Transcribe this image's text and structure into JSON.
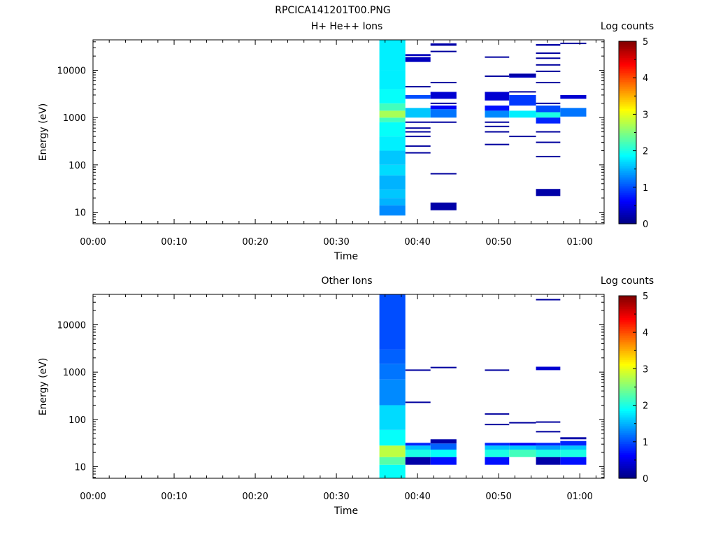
{
  "figure_title": "RPCICA141201T00.PNG",
  "chart_data": [
    {
      "type": "heatmap",
      "title": "H+ He++ Ions",
      "xlabel": "Time",
      "ylabel": "Energy (eV)",
      "colorbar_label": "Log counts",
      "x_ticks": [
        "00:00",
        "00:10",
        "00:20",
        "00:30",
        "00:40",
        "00:50",
        "01:00"
      ],
      "y_ticks": [
        "10",
        "100",
        "1000",
        "10000"
      ],
      "xlim_minutes": [
        0,
        63
      ],
      "ylim_ev": [
        5.7,
        44000
      ],
      "y_scale": "log",
      "colorbar_ticks": [
        "0",
        "1",
        "2",
        "3",
        "4",
        "5"
      ],
      "clim": [
        0,
        5
      ],
      "colormap": "jet",
      "cells": [
        [
          35.3,
          38.5,
          8.5,
          14,
          1.3
        ],
        [
          35.3,
          38.5,
          14,
          20,
          1.5
        ],
        [
          35.3,
          38.5,
          20,
          30,
          1.6
        ],
        [
          35.3,
          38.5,
          30,
          60,
          1.5
        ],
        [
          35.3,
          38.5,
          60,
          100,
          1.7
        ],
        [
          35.3,
          38.5,
          100,
          200,
          1.6
        ],
        [
          35.3,
          38.5,
          200,
          400,
          1.8
        ],
        [
          35.3,
          38.5,
          400,
          800,
          1.9
        ],
        [
          35.3,
          38.5,
          800,
          1000,
          2.2
        ],
        [
          35.3,
          38.5,
          1000,
          1400,
          2.7
        ],
        [
          35.3,
          38.5,
          1400,
          2000,
          2.2
        ],
        [
          35.3,
          38.5,
          2000,
          4000,
          1.9
        ],
        [
          35.3,
          38.5,
          4000,
          10000,
          1.8
        ],
        [
          35.3,
          38.5,
          10000,
          44000,
          1.8
        ],
        [
          38.5,
          41.6,
          1000,
          1600,
          1.6
        ],
        [
          38.5,
          41.6,
          2500,
          3000,
          1.0
        ],
        [
          38.5,
          41.6,
          15000,
          19000,
          0.3
        ],
        [
          38.5,
          41.6,
          20000,
          22000,
          0.3
        ],
        [
          41.6,
          44.8,
          1000,
          1500,
          1.2
        ],
        [
          41.6,
          44.8,
          1500,
          1800,
          0.6
        ],
        [
          41.6,
          44.8,
          2500,
          3500,
          0.4
        ],
        [
          41.6,
          44.8,
          11,
          16,
          0.2
        ],
        [
          41.6,
          44.8,
          33000,
          37000,
          0.2
        ],
        [
          48.3,
          51.3,
          1000,
          1400,
          1.3
        ],
        [
          48.3,
          51.3,
          1400,
          1800,
          0.7
        ],
        [
          48.3,
          51.3,
          2300,
          3500,
          0.4
        ],
        [
          51.3,
          54.6,
          1000,
          1400,
          1.8
        ],
        [
          51.3,
          54.6,
          1800,
          3000,
          0.9
        ],
        [
          51.3,
          54.6,
          7000,
          8500,
          0.3
        ],
        [
          54.6,
          57.6,
          1000,
          1300,
          2.0
        ],
        [
          54.6,
          57.6,
          1300,
          1800,
          1.0
        ],
        [
          54.6,
          57.6,
          750,
          1000,
          0.8
        ],
        [
          54.6,
          57.6,
          22,
          31,
          0.2
        ],
        [
          54.6,
          57.6,
          33000,
          36000,
          0.2
        ],
        [
          57.6,
          60.8,
          1050,
          1600,
          1.2
        ],
        [
          57.6,
          60.8,
          2500,
          3000,
          0.4
        ]
      ],
      "lines": [
        [
          38.5,
          41.6,
          180
        ],
        [
          38.5,
          41.6,
          250
        ],
        [
          38.5,
          41.6,
          400
        ],
        [
          38.5,
          41.6,
          500
        ],
        [
          38.5,
          41.6,
          600
        ],
        [
          38.5,
          41.6,
          800
        ],
        [
          38.5,
          41.6,
          4500
        ],
        [
          41.6,
          44.8,
          65
        ],
        [
          41.6,
          44.8,
          800
        ],
        [
          41.6,
          44.8,
          2000
        ],
        [
          41.6,
          44.8,
          5500
        ],
        [
          41.6,
          44.8,
          25000
        ],
        [
          48.3,
          51.3,
          270
        ],
        [
          48.3,
          51.3,
          500
        ],
        [
          48.3,
          51.3,
          650
        ],
        [
          48.3,
          51.3,
          800
        ],
        [
          48.3,
          51.3,
          7500
        ],
        [
          48.3,
          51.3,
          19000
        ],
        [
          51.3,
          54.6,
          400
        ],
        [
          51.3,
          54.6,
          3500
        ],
        [
          51.3,
          54.6,
          8000
        ],
        [
          54.6,
          57.6,
          150
        ],
        [
          54.6,
          57.6,
          300
        ],
        [
          54.6,
          57.6,
          500
        ],
        [
          54.6,
          57.6,
          2000
        ],
        [
          54.6,
          57.6,
          5500
        ],
        [
          54.6,
          57.6,
          9500
        ],
        [
          54.6,
          57.6,
          13000
        ],
        [
          54.6,
          57.6,
          18000
        ],
        [
          54.6,
          57.6,
          23000
        ],
        [
          57.6,
          60.8,
          37000
        ]
      ]
    },
    {
      "type": "heatmap",
      "title": "Other Ions",
      "xlabel": "Time",
      "ylabel": "Energy (eV)",
      "colorbar_label": "Log counts",
      "x_ticks": [
        "00:00",
        "00:10",
        "00:20",
        "00:30",
        "00:40",
        "00:50",
        "01:00"
      ],
      "y_ticks": [
        "10",
        "100",
        "1000",
        "10000"
      ],
      "xlim_minutes": [
        0,
        63
      ],
      "ylim_ev": [
        5.7,
        44000
      ],
      "y_scale": "log",
      "colorbar_ticks": [
        "0",
        "1",
        "2",
        "3",
        "4",
        "5"
      ],
      "clim": [
        0,
        5
      ],
      "colormap": "jet",
      "cells": [
        [
          35.3,
          38.5,
          5.7,
          11,
          1.9
        ],
        [
          35.3,
          38.5,
          11,
          16,
          2.3
        ],
        [
          35.3,
          38.5,
          16,
          28,
          2.8
        ],
        [
          35.3,
          38.5,
          28,
          60,
          1.9
        ],
        [
          35.3,
          38.5,
          60,
          200,
          1.7
        ],
        [
          35.3,
          38.5,
          200,
          700,
          1.3
        ],
        [
          35.3,
          38.5,
          700,
          1500,
          1.2
        ],
        [
          35.3,
          38.5,
          1500,
          3000,
          1.1
        ],
        [
          35.3,
          38.5,
          3000,
          44000,
          1.0
        ],
        [
          38.5,
          41.6,
          11,
          16,
          0.2
        ],
        [
          38.5,
          41.6,
          16,
          23,
          2.0
        ],
        [
          38.5,
          41.6,
          23,
          28,
          1.6
        ],
        [
          38.5,
          41.6,
          28,
          32,
          0.8
        ],
        [
          41.6,
          44.8,
          11,
          16,
          0.7
        ],
        [
          41.6,
          44.8,
          16,
          23,
          1.9
        ],
        [
          41.6,
          44.8,
          23,
          31,
          1.1
        ],
        [
          41.6,
          44.8,
          31,
          38,
          0.2
        ],
        [
          48.3,
          51.3,
          11,
          16,
          0.7
        ],
        [
          48.3,
          51.3,
          16,
          23,
          2.0
        ],
        [
          48.3,
          51.3,
          23,
          28,
          1.6
        ],
        [
          48.3,
          51.3,
          28,
          32,
          0.8
        ],
        [
          51.3,
          54.6,
          16,
          23,
          2.2
        ],
        [
          51.3,
          54.6,
          23,
          28,
          1.6
        ],
        [
          51.3,
          54.6,
          28,
          32,
          0.6
        ],
        [
          54.6,
          57.6,
          11,
          16,
          0.2
        ],
        [
          54.6,
          57.6,
          16,
          23,
          2.0
        ],
        [
          54.6,
          57.6,
          23,
          28,
          1.4
        ],
        [
          54.6,
          57.6,
          28,
          32,
          0.8
        ],
        [
          54.6,
          57.6,
          1100,
          1300,
          0.4
        ],
        [
          57.6,
          60.8,
          11,
          16,
          0.7
        ],
        [
          57.6,
          60.8,
          16,
          23,
          2.0
        ],
        [
          57.6,
          60.8,
          23,
          28,
          1.6
        ],
        [
          57.6,
          60.8,
          28,
          35,
          0.8
        ],
        [
          57.6,
          60.8,
          38,
          42,
          0.2
        ]
      ],
      "lines": [
        [
          38.5,
          41.6,
          230
        ],
        [
          38.5,
          41.6,
          1100
        ],
        [
          41.6,
          44.8,
          1250
        ],
        [
          48.3,
          51.3,
          78
        ],
        [
          48.3,
          51.3,
          130
        ],
        [
          48.3,
          51.3,
          1100
        ],
        [
          51.3,
          54.6,
          85
        ],
        [
          54.6,
          57.6,
          55
        ],
        [
          54.6,
          57.6,
          88
        ],
        [
          54.6,
          57.6,
          34000
        ]
      ]
    }
  ]
}
